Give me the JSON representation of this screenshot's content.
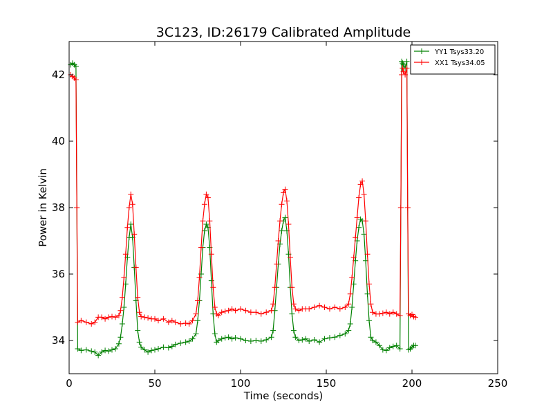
{
  "chart_data": {
    "type": "line",
    "title": "3C123, ID:26179 Calibrated Amplitude",
    "xlabel": "Time (seconds)",
    "ylabel": "Power in Kelvin",
    "xlim": [
      0,
      250
    ],
    "ylim": [
      33,
      43
    ],
    "x_ticks": [
      0,
      50,
      100,
      150,
      200,
      250
    ],
    "y_ticks": [
      34,
      36,
      38,
      40,
      42
    ],
    "grid": false,
    "legend_position": "top-right",
    "marker": "+",
    "series": [
      {
        "name": "YY1 Tsys33.20",
        "color": "#008000",
        "x": [
          1,
          2,
          3,
          4,
          4.5,
          5,
          7,
          10,
          13,
          15,
          17,
          19,
          21,
          23,
          25,
          27,
          29,
          30,
          31,
          32,
          33,
          34,
          35,
          36,
          37,
          38,
          39,
          40,
          41,
          42,
          44,
          46,
          48,
          50,
          52,
          55,
          58,
          60,
          62,
          65,
          68,
          70,
          72,
          74,
          75,
          76,
          77,
          78,
          79,
          80,
          81,
          82,
          83,
          84,
          85,
          86,
          87,
          89,
          91,
          93,
          95,
          97,
          100,
          103,
          106,
          109,
          112,
          115,
          118,
          119,
          120,
          121,
          122,
          123,
          124,
          125,
          126,
          127,
          128,
          129,
          130,
          131,
          132,
          134,
          136,
          138,
          140,
          143,
          146,
          149,
          152,
          155,
          158,
          161,
          163,
          164,
          165,
          166,
          167,
          168,
          169,
          170,
          171,
          172,
          173,
          174,
          175,
          176,
          177,
          179,
          181,
          183,
          185,
          187,
          189,
          191,
          193,
          193.5,
          194,
          194.5,
          195,
          196,
          197,
          197.5,
          198,
          199,
          200,
          201,
          202
        ],
        "values": [
          42.3,
          42.35,
          42.3,
          42.25,
          38.0,
          33.75,
          33.7,
          33.72,
          33.68,
          33.65,
          33.55,
          33.65,
          33.7,
          33.68,
          33.72,
          33.75,
          33.9,
          34.1,
          34.5,
          35.0,
          35.7,
          36.5,
          37.1,
          37.5,
          37.1,
          36.2,
          35.2,
          34.3,
          33.95,
          33.8,
          33.72,
          33.65,
          33.7,
          33.72,
          33.75,
          33.8,
          33.78,
          33.82,
          33.88,
          33.92,
          33.95,
          33.98,
          34.05,
          34.2,
          34.6,
          35.2,
          36.0,
          36.8,
          37.3,
          37.5,
          37.4,
          36.8,
          35.8,
          34.8,
          34.2,
          33.95,
          34.0,
          34.05,
          34.08,
          34.1,
          34.05,
          34.08,
          34.05,
          34.0,
          33.98,
          34.0,
          33.98,
          34.02,
          34.1,
          34.3,
          34.9,
          35.6,
          36.3,
          36.9,
          37.3,
          37.6,
          37.7,
          37.3,
          36.6,
          35.6,
          34.8,
          34.3,
          34.1,
          34.0,
          34.02,
          34.05,
          33.98,
          34.02,
          33.95,
          34.05,
          34.08,
          34.1,
          34.15,
          34.2,
          34.3,
          34.5,
          35.0,
          35.7,
          36.4,
          37.0,
          37.4,
          37.65,
          37.6,
          37.2,
          36.4,
          35.4,
          34.6,
          34.1,
          34.0,
          33.95,
          33.85,
          33.72,
          33.7,
          33.78,
          33.82,
          33.85,
          33.75,
          38.0,
          42.4,
          42.35,
          42.3,
          42.2,
          42.4,
          38.0,
          33.72,
          33.75,
          33.8,
          33.85,
          33.85
        ]
      },
      {
        "name": "XX1 Tsys34.05",
        "color": "#ff0000",
        "x": [
          1,
          2,
          3,
          4,
          4.5,
          5,
          7,
          10,
          13,
          15,
          17,
          19,
          21,
          23,
          25,
          27,
          29,
          30,
          31,
          32,
          33,
          34,
          35,
          36,
          37,
          38,
          39,
          40,
          41,
          42,
          44,
          46,
          48,
          50,
          52,
          55,
          58,
          60,
          62,
          65,
          68,
          70,
          72,
          74,
          75,
          76,
          77,
          78,
          79,
          80,
          81,
          82,
          83,
          84,
          85,
          86,
          87,
          89,
          91,
          93,
          95,
          97,
          100,
          103,
          106,
          109,
          112,
          115,
          118,
          119,
          120,
          121,
          122,
          123,
          124,
          125,
          126,
          127,
          128,
          129,
          130,
          131,
          132,
          134,
          136,
          138,
          140,
          143,
          146,
          149,
          152,
          155,
          158,
          161,
          163,
          164,
          165,
          166,
          167,
          168,
          169,
          170,
          171,
          172,
          173,
          174,
          175,
          176,
          177,
          179,
          181,
          183,
          185,
          187,
          189,
          191,
          193,
          193.5,
          194,
          194.5,
          195,
          196,
          197,
          197.5,
          198,
          199,
          200,
          201,
          202
        ],
        "values": [
          42.0,
          41.95,
          41.9,
          41.85,
          38.0,
          34.55,
          34.6,
          34.55,
          34.5,
          34.55,
          34.7,
          34.7,
          34.65,
          34.7,
          34.72,
          34.7,
          34.75,
          34.9,
          35.3,
          35.9,
          36.6,
          37.4,
          38.0,
          38.4,
          38.1,
          37.2,
          36.2,
          35.3,
          34.85,
          34.72,
          34.7,
          34.68,
          34.65,
          34.65,
          34.6,
          34.65,
          34.55,
          34.6,
          34.55,
          34.5,
          34.52,
          34.5,
          34.6,
          34.8,
          35.2,
          35.9,
          36.8,
          37.6,
          38.1,
          38.4,
          38.3,
          37.6,
          36.6,
          35.6,
          35.0,
          34.8,
          34.75,
          34.85,
          34.88,
          34.9,
          34.95,
          34.9,
          34.95,
          34.9,
          34.85,
          34.85,
          34.8,
          34.85,
          34.9,
          35.1,
          35.6,
          36.3,
          37.0,
          37.6,
          38.1,
          38.45,
          38.55,
          38.2,
          37.5,
          36.5,
          35.6,
          35.1,
          34.95,
          34.9,
          34.95,
          34.95,
          34.95,
          35.0,
          35.05,
          35.0,
          34.95,
          35.0,
          34.95,
          35.0,
          35.1,
          35.4,
          35.9,
          36.5,
          37.1,
          37.7,
          38.3,
          38.7,
          38.8,
          38.4,
          37.6,
          36.6,
          35.7,
          35.1,
          34.85,
          34.8,
          34.8,
          34.82,
          34.85,
          34.8,
          34.85,
          34.8,
          34.75,
          38.0,
          42.0,
          42.2,
          42.1,
          42.0,
          42.2,
          38.0,
          34.8,
          34.75,
          34.78,
          34.72,
          34.7
        ]
      }
    ]
  }
}
